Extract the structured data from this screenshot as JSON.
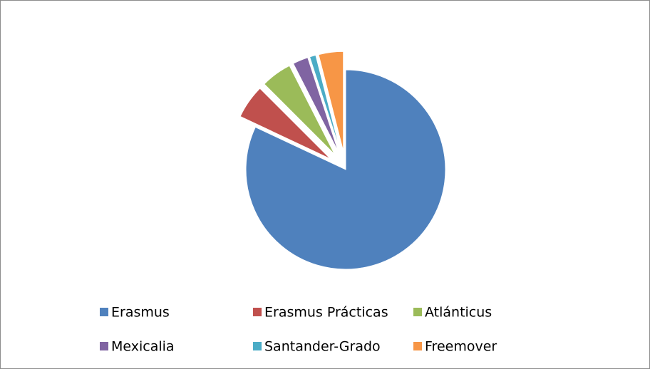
{
  "chart_data": {
    "type": "pie",
    "categories": [
      "Erasmus",
      "Erasmus Prácticas",
      "Atlánticus",
      "Mexicalia",
      "Santander-Grado",
      "Freemover"
    ],
    "values": [
      82,
      5.5,
      5,
      2.5,
      1,
      4
    ],
    "colors": [
      "#4f81bd",
      "#c0504d",
      "#9bbb59",
      "#8064a2",
      "#4bacc6",
      "#f79646"
    ],
    "exploded": [
      false,
      true,
      true,
      true,
      true,
      true
    ],
    "legend": "bottom"
  }
}
